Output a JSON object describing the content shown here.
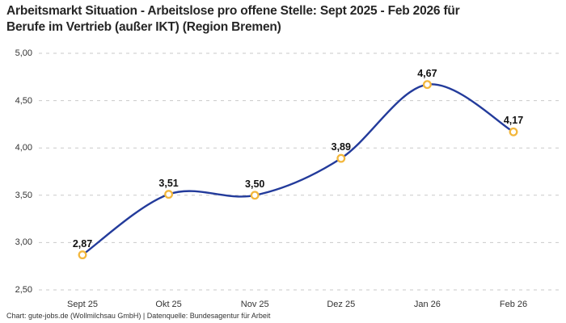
{
  "header": {
    "title": "Arbeitsmarkt Situation - Arbeitslose pro offene Stelle: Sept 2025 - Feb 2026 für Berufe im Vertrieb (außer IKT) (Region Bremen)",
    "title_lines": [
      "Arbeitsmarkt Situation - Arbeitslose pro offene Stelle: Sept 2025 - Feb 2026 für",
      "Berufe im Vertrieb (außer IKT) (Region Bremen)"
    ]
  },
  "footer": {
    "text": "Chart: gute-jobs.de (Wollmilchsau GmbH) | Datenquelle: Bundesagentur für Arbeit"
  },
  "chart_data": {
    "type": "line",
    "title": "Arbeitsmarkt Situation - Arbeitslose pro offene Stelle: Sept 2025 - Feb 2026 für Berufe im Vertrieb (außer IKT) (Region Bremen)",
    "categories": [
      "Sept 25",
      "Okt 25",
      "Nov 25",
      "Dez 25",
      "Jan 26",
      "Feb 26"
    ],
    "values": [
      2.87,
      3.51,
      3.5,
      3.89,
      4.67,
      4.17
    ],
    "value_labels": [
      "2,87",
      "3,51",
      "3,50",
      "3,89",
      "4,67",
      "4,17"
    ],
    "yticks": [
      {
        "value": 5.0,
        "label": "5,00"
      },
      {
        "value": 4.5,
        "label": "4,50"
      },
      {
        "value": 4.0,
        "label": "4,00"
      },
      {
        "value": 3.5,
        "label": "3,50"
      },
      {
        "value": 3.0,
        "label": "3,00"
      },
      {
        "value": 2.5,
        "label": "2,50"
      }
    ],
    "ylim": [
      2.5,
      5.0
    ],
    "xlabel": "",
    "ylabel": "",
    "legend": "none",
    "grid": "horizontal-dashed",
    "line_style": "smooth-curve",
    "colors": {
      "line": "#233B9B",
      "marker_stroke": "#F3B73C",
      "marker_fill": "#FFFFFF",
      "grid": "#C9C9C9",
      "title_text": "#262626",
      "axis_text": "#333333",
      "value_label_text": "#111111"
    }
  }
}
